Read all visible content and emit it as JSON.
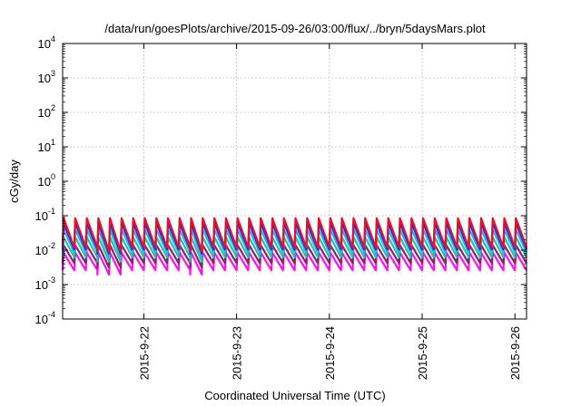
{
  "chart_data": {
    "type": "line",
    "title": "/data/run/goesPlots/archive/2015-09-26/03:00/flux/../bryn/5daysMars.plot",
    "xlabel": "Coordinated Universal Time (UTC)",
    "ylabel": "cGy/day",
    "yscale": "log",
    "ylim": [
      0.0001,
      10000
    ],
    "xlim": [
      "2015-09-21T03:00",
      "2015-09-26T03:00"
    ],
    "y_ticks": [
      {
        "base": "10",
        "exp": "-4"
      },
      {
        "base": "10",
        "exp": "-3"
      },
      {
        "base": "10",
        "exp": "-2"
      },
      {
        "base": "10",
        "exp": "-1"
      },
      {
        "base": "10",
        "exp": "0"
      },
      {
        "base": "10",
        "exp": "1"
      },
      {
        "base": "10",
        "exp": "2"
      },
      {
        "base": "10",
        "exp": "3"
      },
      {
        "base": "10",
        "exp": "4"
      }
    ],
    "x_ticks": [
      {
        "label": "2015-9-22",
        "date": "2015-09-22T00:00"
      },
      {
        "label": "2015-9-23",
        "date": "2015-09-23T00:00"
      },
      {
        "label": "2015-9-24",
        "date": "2015-09-24T00:00"
      },
      {
        "label": "2015-9-25",
        "date": "2015-09-25T00:00"
      },
      {
        "label": "2015-9-26",
        "date": "2015-09-26T00:00"
      }
    ],
    "grid": true,
    "legend": "none",
    "pattern": {
      "period_hours": 3,
      "start": "2015-09-21T03:00"
    },
    "series": [
      {
        "color": "#e8112d",
        "peak": 0.085,
        "trough": 0.012
      },
      {
        "color": "#1f2fd6",
        "peak": 0.062,
        "trough": 0.0105
      },
      {
        "color": "#2bb3e6",
        "peak": 0.04,
        "trough": 0.0085
      },
      {
        "color": "#24c2a4",
        "peak": 0.024,
        "trough": 0.0062
      },
      {
        "color": "#8a1f6b",
        "peak": 0.014,
        "trough": 0.0042
      },
      {
        "color": "#ff10e8",
        "peak": 0.0085,
        "trough": 0.0026
      }
    ]
  }
}
